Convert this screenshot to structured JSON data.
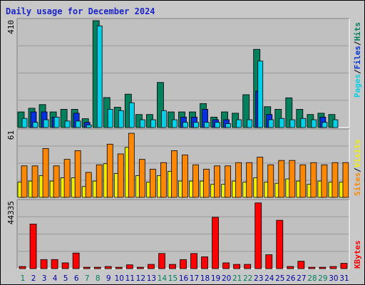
{
  "title": "Daily usage for December 2024",
  "colors": {
    "hits": "#00805c",
    "files": "#0030e0",
    "pages": "#00d0e8",
    "visits": "#f0f000",
    "sites": "#ff8800",
    "kbytes": "#ff0000",
    "weekday": "#0000aa",
    "weekend": "#00805c",
    "separator": "#000000"
  },
  "chart_data": [
    {
      "type": "bar",
      "panel": "top",
      "ymax_label": "410",
      "ylim": [
        0,
        410
      ],
      "legend": [
        "Pages",
        "Files",
        "Hits"
      ],
      "legend_colors": [
        "pages",
        "files",
        "hits"
      ],
      "categories": [
        "1",
        "2",
        "3",
        "4",
        "5",
        "6",
        "7",
        "8",
        "9",
        "10",
        "11",
        "12",
        "13",
        "14",
        "15",
        "16",
        "17",
        "18",
        "19",
        "20",
        "21",
        "22",
        "23",
        "24",
        "25",
        "26",
        "27",
        "28",
        "29",
        "30",
        "31"
      ],
      "weekend_days": [
        "1",
        "7",
        "8",
        "14",
        "15",
        "21",
        "22",
        "28",
        "29"
      ],
      "series": [
        {
          "name": "Hits",
          "values": [
            60,
            74,
            88,
            60,
            70,
            70,
            34,
            410,
            115,
            78,
            128,
            50,
            50,
            173,
            60,
            60,
            60,
            92,
            40,
            60,
            55,
            126,
            300,
            80,
            70,
            114,
            70,
            50,
            55,
            50,
            0
          ]
        },
        {
          "name": "Files",
          "values": [
            0,
            60,
            60,
            40,
            0,
            55,
            20,
            0,
            0,
            0,
            0,
            0,
            0,
            0,
            0,
            40,
            40,
            70,
            30,
            30,
            0,
            0,
            140,
            50,
            0,
            0,
            0,
            0,
            40,
            0,
            0
          ]
        },
        {
          "name": "Pages",
          "values": [
            35,
            20,
            30,
            40,
            25,
            25,
            10,
            390,
            70,
            65,
            95,
            30,
            30,
            65,
            30,
            20,
            20,
            20,
            20,
            15,
            30,
            30,
            255,
            30,
            35,
            30,
            35,
            30,
            20,
            30,
            0
          ]
        }
      ]
    },
    {
      "type": "bar",
      "panel": "middle",
      "ymax_label": "61",
      "ylim": [
        0,
        61
      ],
      "legend": [
        "Sites",
        "Visits"
      ],
      "legend_colors": [
        "sites",
        "visits"
      ],
      "series": [
        {
          "name": "Visits",
          "values": [
            14,
            15,
            20,
            15,
            18,
            18,
            10,
            15,
            31,
            22,
            46,
            20,
            14,
            20,
            24,
            15,
            15,
            15,
            12,
            12,
            15,
            14,
            18,
            14,
            13,
            17,
            15,
            12,
            15,
            14,
            14
          ]
        },
        {
          "name": "Sites",
          "values": [
            29,
            29,
            45,
            29,
            35,
            43,
            23,
            30,
            49,
            40,
            59,
            35,
            26,
            32,
            43,
            39,
            30,
            26,
            29,
            29,
            32,
            32,
            37,
            30,
            34,
            34,
            30,
            32,
            30,
            32,
            32
          ]
        }
      ]
    },
    {
      "type": "bar",
      "panel": "bottom",
      "ymax_label": "44335",
      "ylim": [
        0,
        44335
      ],
      "legend": [
        "KBytes"
      ],
      "legend_colors": [
        "kbytes"
      ],
      "series": [
        {
          "name": "KBytes",
          "values": [
            1400,
            29500,
            6000,
            6000,
            3800,
            10300,
            900,
            900,
            1400,
            900,
            2500,
            900,
            2800,
            10000,
            2800,
            6000,
            10000,
            7800,
            34000,
            3800,
            2800,
            2800,
            43500,
            9200,
            32000,
            1400,
            4900,
            900,
            900,
            1400,
            3500
          ]
        }
      ]
    }
  ]
}
